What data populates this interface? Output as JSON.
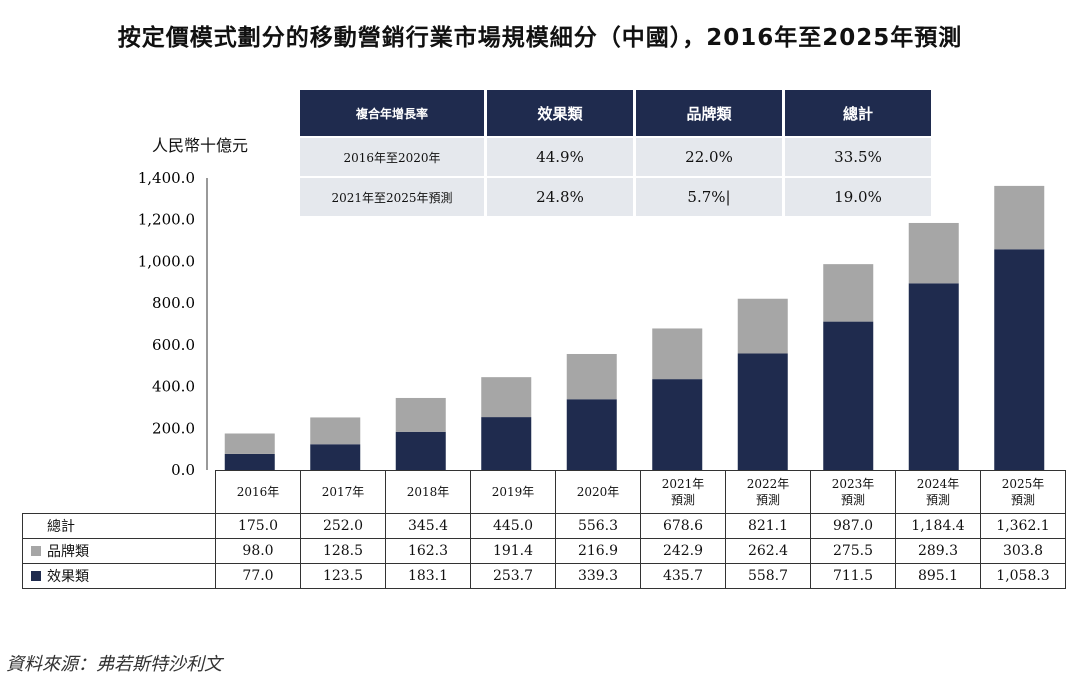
{
  "title": "按定價模式劃分的移動營銷行業市場規模細分（中國），2016年至2025年預測",
  "unit": "人民幣十億元",
  "cagr_table": {
    "headers": [
      "複合年增長率",
      "效果類",
      "品牌類",
      "總計"
    ],
    "rows": [
      {
        "label": "2016年至2020年",
        "values": [
          "44.9%",
          "22.0%",
          "33.5%"
        ]
      },
      {
        "label": "2021年至2025年預測",
        "values": [
          "24.8%",
          "5.7%|",
          "19.0%"
        ]
      }
    ]
  },
  "chart_data": {
    "type": "bar",
    "stacked": true,
    "title": "按定價模式劃分的移動營銷行業市場規模細分（中國），2016年至2025年預測",
    "ylabel": "人民幣十億元",
    "ylim": [
      0,
      1400
    ],
    "yticks": [
      "0.0",
      "200.0",
      "400.0",
      "600.0",
      "800.0",
      "1,000.0",
      "1,200.0",
      "1,400.0"
    ],
    "categories": [
      "2016年",
      "2017年",
      "2018年",
      "2019年",
      "2020年",
      "2021年\n預測",
      "2022年\n預測",
      "2023年\n預測",
      "2024年\n預測",
      "2025年\n預測"
    ],
    "series": [
      {
        "name": "效果類",
        "color": "#1f2b4e",
        "values": [
          77.0,
          123.5,
          183.1,
          253.7,
          339.3,
          435.7,
          558.7,
          711.5,
          895.1,
          1058.3
        ],
        "labels": [
          "77.0",
          "123.5",
          "183.1",
          "253.7",
          "339.3",
          "435.7",
          "558.7",
          "711.5",
          "895.1",
          "1,058.3"
        ]
      },
      {
        "name": "品牌類",
        "color": "#a6a6a6",
        "values": [
          98.0,
          128.5,
          162.3,
          191.4,
          216.9,
          242.9,
          262.4,
          275.5,
          289.3,
          303.8
        ],
        "labels": [
          "98.0",
          "128.5",
          "162.3",
          "191.4",
          "216.9",
          "242.9",
          "262.4",
          "275.5",
          "289.3",
          "303.8"
        ]
      }
    ],
    "total": {
      "name": "總計",
      "labels": [
        "175.0",
        "252.0",
        "345.4",
        "445.0",
        "556.3",
        "678.6",
        "821.1",
        "987.0",
        "1,184.4",
        "1,362.1"
      ]
    }
  },
  "source": "資料來源：弗若斯特沙利文"
}
